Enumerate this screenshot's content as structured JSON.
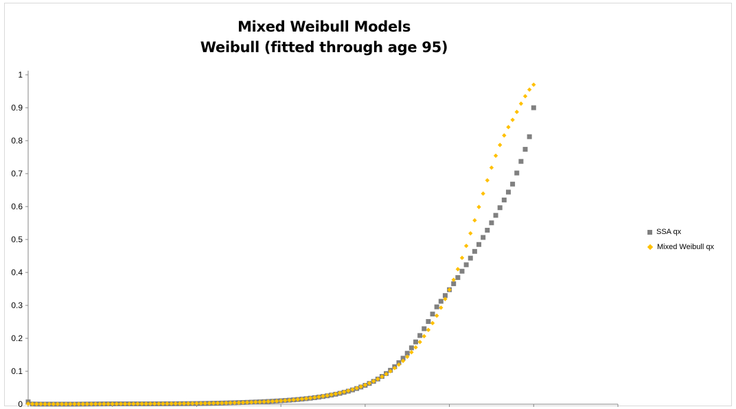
{
  "chart_data": {
    "type": "scatter",
    "title": "Mixed Weibull Models",
    "subtitle": "Weibull (fitted through age 95)",
    "xlim": [
      0,
      140
    ],
    "ylim": [
      0,
      1
    ],
    "x_ticks": [
      "0",
      "20",
      "40",
      "60",
      "80",
      "100",
      "120",
      "140"
    ],
    "y_ticks": [
      "0",
      "0.1",
      "0.2",
      "0.3",
      "0.4",
      "0.5",
      "0.6",
      "0.7",
      "0.8",
      "0.9",
      "1"
    ],
    "grid": false,
    "legend_position": "right",
    "series": [
      {
        "name": "SSA qx",
        "marker": "square",
        "color": "#808080",
        "points": [
          [
            0,
            0.007
          ],
          [
            1,
            0.0005
          ],
          [
            2,
            0.0003
          ],
          [
            3,
            0.0002
          ],
          [
            4,
            0.0002
          ],
          [
            5,
            0.0002
          ],
          [
            6,
            0.0001
          ],
          [
            7,
            0.0001
          ],
          [
            8,
            0.0001
          ],
          [
            9,
            0.0001
          ],
          [
            10,
            0.0001
          ],
          [
            11,
            0.0001
          ],
          [
            12,
            0.0002
          ],
          [
            13,
            0.0003
          ],
          [
            14,
            0.0004
          ],
          [
            15,
            0.0005
          ],
          [
            16,
            0.0006
          ],
          [
            17,
            0.0007
          ],
          [
            18,
            0.0008
          ],
          [
            19,
            0.0009
          ],
          [
            20,
            0.001
          ],
          [
            21,
            0.001
          ],
          [
            22,
            0.001
          ],
          [
            23,
            0.001
          ],
          [
            24,
            0.001
          ],
          [
            25,
            0.001
          ],
          [
            26,
            0.001
          ],
          [
            27,
            0.001
          ],
          [
            28,
            0.001
          ],
          [
            29,
            0.001
          ],
          [
            30,
            0.0011
          ],
          [
            31,
            0.0011
          ],
          [
            32,
            0.0012
          ],
          [
            33,
            0.0013
          ],
          [
            34,
            0.0013
          ],
          [
            35,
            0.0014
          ],
          [
            36,
            0.0015
          ],
          [
            37,
            0.0016
          ],
          [
            38,
            0.0017
          ],
          [
            39,
            0.0019
          ],
          [
            40,
            0.002
          ],
          [
            41,
            0.0022
          ],
          [
            42,
            0.0024
          ],
          [
            43,
            0.0026
          ],
          [
            44,
            0.0029
          ],
          [
            45,
            0.0031
          ],
          [
            46,
            0.0034
          ],
          [
            47,
            0.0037
          ],
          [
            48,
            0.0041
          ],
          [
            49,
            0.0044
          ],
          [
            50,
            0.0048
          ],
          [
            51,
            0.0052
          ],
          [
            52,
            0.0056
          ],
          [
            53,
            0.0061
          ],
          [
            54,
            0.0066
          ],
          [
            55,
            0.0071
          ],
          [
            56,
            0.0077
          ],
          [
            57,
            0.0083
          ],
          [
            58,
            0.009
          ],
          [
            59,
            0.0097
          ],
          [
            60,
            0.0105
          ],
          [
            61,
            0.0113
          ],
          [
            62,
            0.0122
          ],
          [
            63,
            0.0132
          ],
          [
            64,
            0.0143
          ],
          [
            65,
            0.0155
          ],
          [
            66,
            0.0168
          ],
          [
            67,
            0.0182
          ],
          [
            68,
            0.0198
          ],
          [
            69,
            0.0215
          ],
          [
            70,
            0.0234
          ],
          [
            71,
            0.0255
          ],
          [
            72,
            0.0278
          ],
          [
            73,
            0.0303
          ],
          [
            74,
            0.0331
          ],
          [
            75,
            0.0362
          ],
          [
            76,
            0.0396
          ],
          [
            77,
            0.0434
          ],
          [
            78,
            0.0476
          ],
          [
            79,
            0.0522
          ],
          [
            80,
            0.0573
          ],
          [
            81,
            0.063
          ],
          [
            82,
            0.0693
          ],
          [
            83,
            0.0764
          ],
          [
            84,
            0.0843
          ],
          [
            85,
            0.0931
          ],
          [
            86,
            0.1029
          ],
          [
            87,
            0.1138
          ],
          [
            88,
            0.126
          ],
          [
            89,
            0.1396
          ],
          [
            90,
            0.1546
          ],
          [
            91,
            0.1711
          ],
          [
            92,
            0.1891
          ],
          [
            93,
            0.2085
          ],
          [
            94,
            0.2292
          ],
          [
            95,
            0.251
          ],
          [
            96,
            0.2737
          ],
          [
            97,
            0.2955
          ],
          [
            98,
            0.3124
          ],
          [
            99,
            0.3298
          ],
          [
            100,
            0.3476
          ],
          [
            101,
            0.3658
          ],
          [
            102,
            0.3845
          ],
          [
            103,
            0.4037
          ],
          [
            104,
            0.4233
          ],
          [
            105,
            0.4434
          ],
          [
            106,
            0.4639
          ],
          [
            107,
            0.4849
          ],
          [
            108,
            0.5063
          ],
          [
            109,
            0.5282
          ],
          [
            110,
            0.5506
          ],
          [
            111,
            0.5733
          ],
          [
            112,
            0.5965
          ],
          [
            113,
            0.62
          ],
          [
            114,
            0.6439
          ],
          [
            115,
            0.6682
          ],
          [
            116,
            0.7019
          ],
          [
            117,
            0.7371
          ],
          [
            118,
            0.7738
          ],
          [
            119,
            0.8121
          ],
          [
            120,
            0.9
          ]
        ]
      },
      {
        "name": "Mixed Weibull qx",
        "marker": "diamond",
        "color": "#ffc000",
        "points": [
          [
            0,
            0.0015
          ],
          [
            1,
            0.0008
          ],
          [
            2,
            0.0005
          ],
          [
            3,
            0.0004
          ],
          [
            4,
            0.0003
          ],
          [
            5,
            0.0003
          ],
          [
            6,
            0.0003
          ],
          [
            7,
            0.0003
          ],
          [
            8,
            0.0003
          ],
          [
            9,
            0.0003
          ],
          [
            10,
            0.0004
          ],
          [
            11,
            0.0004
          ],
          [
            12,
            0.0005
          ],
          [
            13,
            0.0005
          ],
          [
            14,
            0.0006
          ],
          [
            15,
            0.0006
          ],
          [
            16,
            0.0007
          ],
          [
            17,
            0.0007
          ],
          [
            18,
            0.0008
          ],
          [
            19,
            0.0008
          ],
          [
            20,
            0.0009
          ],
          [
            21,
            0.0009
          ],
          [
            22,
            0.001
          ],
          [
            23,
            0.001
          ],
          [
            24,
            0.0011
          ],
          [
            25,
            0.0011
          ],
          [
            26,
            0.0012
          ],
          [
            27,
            0.0012
          ],
          [
            28,
            0.0013
          ],
          [
            29,
            0.0013
          ],
          [
            30,
            0.0014
          ],
          [
            31,
            0.0015
          ],
          [
            32,
            0.0015
          ],
          [
            33,
            0.0016
          ],
          [
            34,
            0.0017
          ],
          [
            35,
            0.0018
          ],
          [
            36,
            0.0019
          ],
          [
            37,
            0.002
          ],
          [
            38,
            0.0021
          ],
          [
            39,
            0.0022
          ],
          [
            40,
            0.0024
          ],
          [
            41,
            0.0025
          ],
          [
            42,
            0.0027
          ],
          [
            43,
            0.0029
          ],
          [
            44,
            0.0031
          ],
          [
            45,
            0.0033
          ],
          [
            46,
            0.0035
          ],
          [
            47,
            0.0038
          ],
          [
            48,
            0.0041
          ],
          [
            49,
            0.0044
          ],
          [
            50,
            0.0047
          ],
          [
            51,
            0.0051
          ],
          [
            52,
            0.0055
          ],
          [
            53,
            0.0059
          ],
          [
            54,
            0.0064
          ],
          [
            55,
            0.0069
          ],
          [
            56,
            0.0075
          ],
          [
            57,
            0.0081
          ],
          [
            58,
            0.0088
          ],
          [
            59,
            0.0095
          ],
          [
            60,
            0.0103
          ],
          [
            61,
            0.0112
          ],
          [
            62,
            0.0122
          ],
          [
            63,
            0.0133
          ],
          [
            64,
            0.0145
          ],
          [
            65,
            0.0158
          ],
          [
            66,
            0.0172
          ],
          [
            67,
            0.0187
          ],
          [
            68,
            0.0204
          ],
          [
            69,
            0.0222
          ],
          [
            70,
            0.0242
          ],
          [
            71,
            0.0264
          ],
          [
            72,
            0.0288
          ],
          [
            73,
            0.0314
          ],
          [
            74,
            0.0343
          ],
          [
            75,
            0.0374
          ],
          [
            76,
            0.0409
          ],
          [
            77,
            0.0447
          ],
          [
            78,
            0.0488
          ],
          [
            79,
            0.0534
          ],
          [
            80,
            0.0584
          ],
          [
            81,
            0.0638
          ],
          [
            82,
            0.0698
          ],
          [
            83,
            0.0764
          ],
          [
            84,
            0.0836
          ],
          [
            85,
            0.0915
          ],
          [
            86,
            0.1002
          ],
          [
            87,
            0.1097
          ],
          [
            88,
            0.1201
          ],
          [
            89,
            0.1315
          ],
          [
            90,
            0.144
          ],
          [
            91,
            0.1576
          ],
          [
            92,
            0.1725
          ],
          [
            93,
            0.1887
          ],
          [
            94,
            0.2064
          ],
          [
            95,
            0.2255
          ],
          [
            96,
            0.2462
          ],
          [
            97,
            0.2687
          ],
          [
            98,
            0.293
          ],
          [
            99,
            0.3192
          ],
          [
            100,
            0.3474
          ],
          [
            101,
            0.3776
          ],
          [
            102,
            0.4099
          ],
          [
            103,
            0.4443
          ],
          [
            104,
            0.4806
          ],
          [
            105,
            0.5187
          ],
          [
            106,
            0.5582
          ],
          [
            107,
            0.5987
          ],
          [
            108,
            0.6394
          ],
          [
            109,
            0.6796
          ],
          [
            110,
            0.7182
          ],
          [
            111,
            0.7543
          ],
          [
            112,
            0.787
          ],
          [
            113,
            0.8159
          ],
          [
            114,
            0.8412
          ],
          [
            115,
            0.8632
          ],
          [
            116,
            0.8873
          ],
          [
            117,
            0.9124
          ],
          [
            118,
            0.935
          ],
          [
            119,
            0.955
          ],
          [
            120,
            0.97
          ]
        ]
      }
    ]
  }
}
